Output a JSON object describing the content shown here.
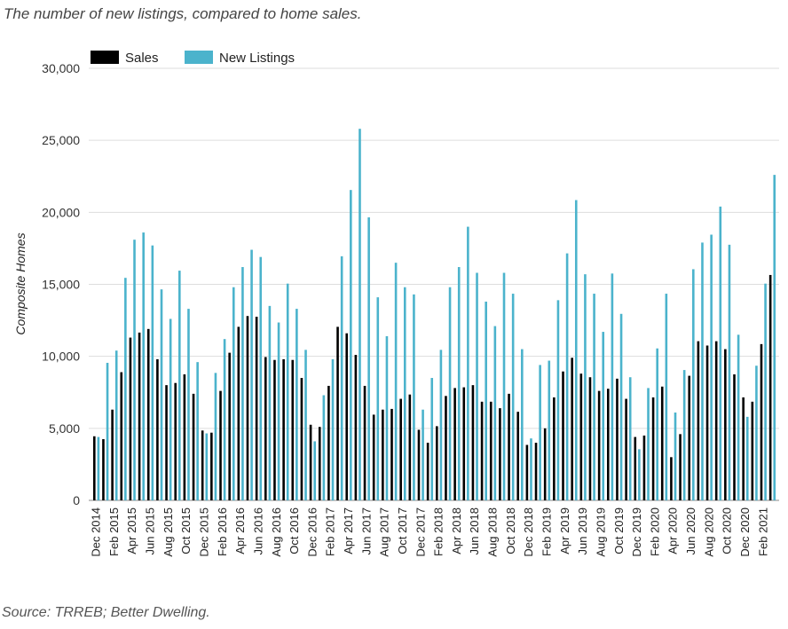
{
  "header": {
    "title": "The number of new listings, compared to home sales."
  },
  "footer": {
    "source": "Source: TRREB; Better Dwelling."
  },
  "colors": {
    "sales": "#000000",
    "listings": "#4bb3cc",
    "grid": "#dddddd"
  },
  "chart_data": {
    "type": "bar",
    "ylabel": "Composite Homes",
    "ylim": [
      0,
      30000
    ],
    "yticks": [
      0,
      5000,
      10000,
      15000,
      20000,
      25000,
      30000
    ],
    "ytick_labels": [
      "0",
      "5,000",
      "10,000",
      "15,000",
      "20,000",
      "25,000",
      "30,000"
    ],
    "grid": true,
    "legend": "top-left",
    "categories": [
      "Dec 2014",
      "Jan 2015",
      "Feb 2015",
      "Mar 2015",
      "Apr 2015",
      "May 2015",
      "Jun 2015",
      "Jul 2015",
      "Aug 2015",
      "Sep 2015",
      "Oct 2015",
      "Nov 2015",
      "Dec 2015",
      "Jan 2016",
      "Feb 2016",
      "Mar 2016",
      "Apr 2016",
      "May 2016",
      "Jun 2016",
      "Jul 2016",
      "Aug 2016",
      "Sep 2016",
      "Oct 2016",
      "Nov 2016",
      "Dec 2016",
      "Jan 2017",
      "Feb 2017",
      "Mar 2017",
      "Apr 2017",
      "May 2017",
      "Jun 2017",
      "Jul 2017",
      "Aug 2017",
      "Sep 2017",
      "Oct 2017",
      "Nov 2017",
      "Dec 2017",
      "Jan 2018",
      "Feb 2018",
      "Mar 2018",
      "Apr 2018",
      "May 2018",
      "Jun 2018",
      "Jul 2018",
      "Aug 2018",
      "Sep 2018",
      "Oct 2018",
      "Nov 2018",
      "Dec 2018",
      "Jan 2019",
      "Feb 2019",
      "Mar 2019",
      "Apr 2019",
      "May 2019",
      "Jun 2019",
      "Jul 2019",
      "Aug 2019",
      "Sep 2019",
      "Oct 2019",
      "Nov 2019",
      "Dec 2019",
      "Jan 2020",
      "Feb 2020",
      "Mar 2020",
      "Apr 2020",
      "May 2020",
      "Jun 2020",
      "Jul 2020",
      "Aug 2020",
      "Sep 2020",
      "Oct 2020",
      "Nov 2020",
      "Dec 2020",
      "Jan 2021",
      "Feb 2021",
      "Mar 2021"
    ],
    "xtick_labels": [
      "Dec 2014",
      "Feb 2015",
      "Apr 2015",
      "Jun 2015",
      "Aug 2015",
      "Oct 2015",
      "Dec 2015",
      "Feb 2016",
      "Apr 2016",
      "Jun 2016",
      "Aug 2016",
      "Oct 2016",
      "Dec 2016",
      "Feb 2017",
      "Apr 2017",
      "Jun 2017",
      "Aug 2017",
      "Oct 2017",
      "Dec 2017",
      "Feb 2018",
      "Apr 2018",
      "Jun 2018",
      "Aug 2018",
      "Oct 2018",
      "Dec 2018",
      "Feb 2019",
      "Apr 2019",
      "Jun 2019",
      "Aug 2019",
      "Oct 2019",
      "Dec 2019",
      "Feb 2020",
      "Apr 2020",
      "Jun 2020",
      "Aug 2020",
      "Oct 2020",
      "Dec 2020",
      "Feb 2021"
    ],
    "series": [
      {
        "name": "Sales",
        "values": [
          4450,
          4250,
          6300,
          8900,
          11300,
          11650,
          11900,
          9800,
          8000,
          8150,
          8750,
          7400,
          4850,
          4700,
          7600,
          10250,
          12050,
          12800,
          12750,
          9950,
          9750,
          9800,
          9750,
          8500,
          5250,
          5100,
          7950,
          12050,
          11600,
          10100,
          7950,
          5950,
          6300,
          6350,
          7050,
          7350,
          4900,
          4000,
          5150,
          7250,
          7800,
          7850,
          8000,
          6850,
          6850,
          6400,
          7400,
          6150,
          3850,
          4000,
          5000,
          7150,
          8950,
          9900,
          8800,
          8550,
          7600,
          7750,
          8450,
          7050,
          4400,
          4500,
          7150,
          7900,
          3000,
          4600,
          8650,
          11050,
          10750,
          11050,
          10500,
          8750,
          7150,
          6850,
          10850,
          15650
        ]
      },
      {
        "name": "New Listings",
        "values": [
          4400,
          9550,
          10400,
          15450,
          18100,
          18600,
          17700,
          14650,
          12600,
          15950,
          13300,
          9600,
          4650,
          8850,
          11200,
          14800,
          16200,
          17400,
          16900,
          13500,
          12350,
          15050,
          13300,
          10450,
          4100,
          7300,
          9800,
          16950,
          21550,
          25800,
          19650,
          14100,
          11400,
          16500,
          14800,
          14300,
          6300,
          8500,
          10450,
          14800,
          16200,
          19000,
          15800,
          13800,
          12100,
          15800,
          14350,
          10500,
          4300,
          9400,
          9700,
          13900,
          17150,
          20850,
          15700,
          14350,
          11700,
          15750,
          12950,
          8550,
          3550,
          7800,
          10550,
          14350,
          6100,
          9050,
          16050,
          17900,
          18450,
          20400,
          17750,
          11500,
          5800,
          9350,
          15050,
          22600
        ]
      }
    ]
  }
}
